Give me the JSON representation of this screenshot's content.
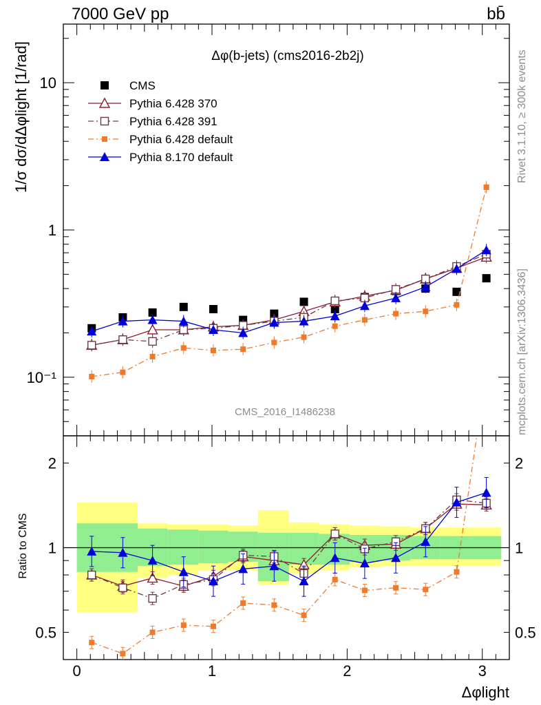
{
  "header": {
    "left": "7000 GeV pp",
    "right": "bb̄"
  },
  "side_text": {
    "top": "Rivet 3.1.10, ≥ 300k events",
    "bottom": "mcplots.cern.ch [arXiv:1306.3436]"
  },
  "watermark": "CMS_2016_I1486238",
  "chart_data": [
    {
      "type": "line",
      "title": "Δφ(b-jets) (cms2016-2b2j)",
      "ylabel": "1/σ dσ/dΔφlight [1/rad]",
      "xlabel": "Δφlight",
      "yscale": "log",
      "xlim": [
        -0.1,
        3.2
      ],
      "ylim": [
        0.04,
        25
      ],
      "y_ticks": [
        {
          "value": 0.1,
          "label": "10⁻¹"
        },
        {
          "value": 1,
          "label": "1"
        },
        {
          "value": 10,
          "label": "10"
        }
      ],
      "legend_position": "top-left",
      "x": [
        0.11,
        0.34,
        0.56,
        0.79,
        1.01,
        1.23,
        1.46,
        1.68,
        1.91,
        2.13,
        2.36,
        2.58,
        2.81,
        3.03
      ],
      "series": [
        {
          "name": "CMS",
          "color": "#000000",
          "marker": "square-filled",
          "line": "none",
          "values": [
            0.215,
            0.255,
            0.275,
            0.3,
            0.29,
            0.245,
            0.27,
            0.325,
            0.29,
            0.35,
            0.385,
            0.4,
            0.38,
            0.47
          ]
        },
        {
          "name": "Pythia 6.428 370",
          "color": "#8b1a2b",
          "marker": "triangle-open",
          "line": "solid",
          "values": [
            0.165,
            0.18,
            0.21,
            0.21,
            0.22,
            0.225,
            0.245,
            0.28,
            0.325,
            0.355,
            0.39,
            0.465,
            0.55,
            0.655
          ]
        },
        {
          "name": "Pythia 6.428 391",
          "color": "#6b3a4a",
          "marker": "square-open",
          "line": "dash-dot",
          "values": [
            0.165,
            0.18,
            0.175,
            0.21,
            0.215,
            0.225,
            0.24,
            0.255,
            0.33,
            0.345,
            0.395,
            0.465,
            0.565,
            0.685
          ]
        },
        {
          "name": "Pythia 6.428 default",
          "color": "#f07a2a",
          "marker": "square-filled-small",
          "line": "dash-dot",
          "values": [
            0.101,
            0.108,
            0.138,
            0.158,
            0.152,
            0.155,
            0.172,
            0.187,
            0.222,
            0.245,
            0.27,
            0.28,
            0.31,
            1.95
          ]
        },
        {
          "name": "Pythia 8.170 default",
          "color": "#0000dd",
          "marker": "triangle-filled",
          "line": "solid",
          "values": [
            0.205,
            0.24,
            0.245,
            0.24,
            0.21,
            0.2,
            0.235,
            0.24,
            0.26,
            0.305,
            0.345,
            0.41,
            0.545,
            0.73
          ]
        }
      ]
    },
    {
      "type": "line",
      "ylabel": "Ratio to CMS",
      "xlabel": "Δφlight",
      "yscale": "log",
      "xlim": [
        -0.1,
        3.2
      ],
      "ylim": [
        0.4,
        2.5
      ],
      "y_ticks": [
        {
          "value": 0.5,
          "label": "0.5"
        },
        {
          "value": 1,
          "label": "1"
        },
        {
          "value": 2,
          "label": "2"
        }
      ],
      "x_ticks": [
        0,
        1,
        2,
        3
      ],
      "reference_line": 1,
      "uncertainty_bands": {
        "edges": [
          0.0,
          0.45,
          0.67,
          0.9,
          1.12,
          1.34,
          1.57,
          1.79,
          2.02,
          2.24,
          2.47,
          2.69,
          2.91,
          3.14
        ],
        "inner_color": "#90ee90",
        "outer_color": "#ffff80",
        "inner": [
          [
            0.82,
            1.22
          ],
          [
            0.86,
            1.17
          ],
          [
            0.87,
            1.16
          ],
          [
            0.88,
            1.15
          ],
          [
            0.89,
            1.14
          ],
          [
            0.76,
            1.13
          ],
          [
            0.87,
            1.13
          ],
          [
            0.87,
            1.12
          ],
          [
            0.89,
            1.11
          ],
          [
            0.9,
            1.11
          ],
          [
            0.91,
            1.1
          ],
          [
            0.91,
            1.1
          ],
          [
            0.91,
            1.1
          ]
        ],
        "outer": [
          [
            0.59,
            1.45
          ],
          [
            0.78,
            1.22
          ],
          [
            0.8,
            1.21
          ],
          [
            0.83,
            1.21
          ],
          [
            0.83,
            1.2
          ],
          [
            0.74,
            1.36
          ],
          [
            0.81,
            1.23
          ],
          [
            0.83,
            1.21
          ],
          [
            0.85,
            1.2
          ],
          [
            0.86,
            1.19
          ],
          [
            0.86,
            1.18
          ],
          [
            0.86,
            1.18
          ],
          [
            0.86,
            1.18
          ]
        ]
      },
      "x": [
        0.11,
        0.34,
        0.56,
        0.79,
        1.01,
        1.23,
        1.46,
        1.68,
        1.91,
        2.13,
        2.36,
        2.58,
        2.81,
        3.03
      ],
      "series": [
        {
          "name": "Pythia 6.428 370",
          "color": "#8b1a2b",
          "values": [
            0.8,
            0.73,
            0.78,
            0.73,
            0.79,
            0.93,
            0.9,
            0.87,
            1.12,
            1.02,
            1.03,
            1.17,
            1.43,
            1.42
          ]
        },
        {
          "name": "Pythia 6.428 391",
          "color": "#6b3a4a",
          "values": [
            0.8,
            0.72,
            0.66,
            0.74,
            0.77,
            0.94,
            0.93,
            0.81,
            1.12,
            0.99,
            1.05,
            1.17,
            1.48,
            1.44
          ]
        },
        {
          "name": "Pythia 6.428 default",
          "color": "#f07a2a",
          "values": [
            0.46,
            0.42,
            0.5,
            0.53,
            0.525,
            0.635,
            0.625,
            0.575,
            0.77,
            0.705,
            0.72,
            0.71,
            0.82,
            4.2
          ]
        },
        {
          "name": "Pythia 8.170 default",
          "color": "#0000dd",
          "values": [
            0.97,
            0.96,
            0.9,
            0.82,
            0.76,
            0.84,
            0.86,
            0.76,
            0.92,
            0.88,
            0.92,
            1.05,
            1.45,
            1.57
          ]
        }
      ]
    }
  ]
}
